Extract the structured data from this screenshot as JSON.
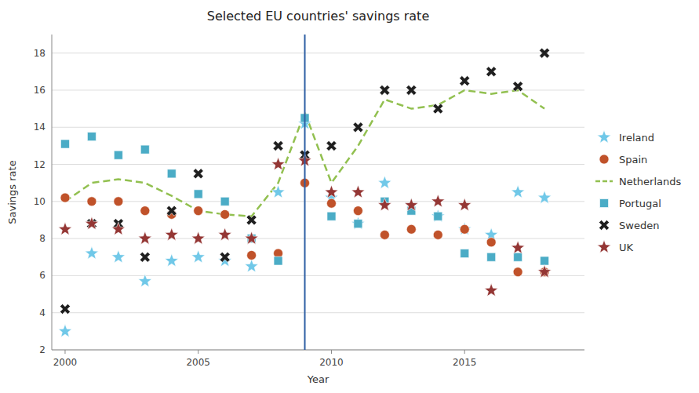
{
  "chart_data": {
    "type": "scatter",
    "title": "Selected EU countries' savings rate",
    "xlabel": "Year",
    "ylabel": "Savings rate",
    "x": [
      2000,
      2001,
      2002,
      2003,
      2004,
      2005,
      2006,
      2007,
      2008,
      2009,
      2010,
      2011,
      2012,
      2013,
      2014,
      2015,
      2016,
      2017,
      2018
    ],
    "xlim": [
      1999.5,
      2019.5
    ],
    "xticks": [
      2000,
      2005,
      2010,
      2015
    ],
    "ylim": [
      2,
      19
    ],
    "yticks": [
      2,
      4,
      6,
      8,
      10,
      12,
      14,
      16,
      18
    ],
    "grid": "y",
    "legend": "right",
    "vline": {
      "x": 2009,
      "color": "#2E5FA3"
    },
    "series": [
      {
        "name": "Ireland",
        "color": "#70C8E8",
        "marker": "star",
        "values": [
          3.0,
          7.2,
          7.0,
          5.7,
          6.8,
          7.0,
          6.8,
          6.5,
          10.5,
          14.2,
          10.2,
          8.8,
          11.0,
          9.8,
          9.2,
          8.5,
          8.2,
          10.5,
          10.2
        ]
      },
      {
        "name": "Spain",
        "color": "#C0522A",
        "marker": "circle",
        "values": [
          10.2,
          10.0,
          10.0,
          9.5,
          9.3,
          9.5,
          9.3,
          7.1,
          7.2,
          11.0,
          9.9,
          9.5,
          8.2,
          8.5,
          8.2,
          8.5,
          7.8,
          6.2,
          6.2
        ]
      },
      {
        "name": "Netherlands",
        "color": "#92C050",
        "type": "line",
        "line_style": "dashed",
        "values": [
          10.0,
          11.0,
          11.2,
          11.0,
          10.3,
          9.5,
          9.3,
          9.2,
          11.0,
          14.8,
          11.0,
          13.0,
          15.5,
          15.0,
          15.2,
          16.0,
          15.8,
          16.0,
          15.0
        ]
      },
      {
        "name": "Portugal",
        "color": "#4BACC6",
        "marker": "square",
        "values": [
          13.1,
          13.5,
          12.5,
          12.8,
          11.5,
          10.4,
          10.0,
          8.0,
          6.8,
          14.5,
          9.2,
          8.8,
          10.0,
          9.5,
          9.2,
          7.2,
          7.0,
          7.0,
          6.8
        ]
      },
      {
        "name": "Sweden",
        "color": "#1F1F1F",
        "marker": "x",
        "values": [
          4.2,
          8.8,
          8.8,
          7.0,
          9.5,
          11.5,
          7.0,
          9.0,
          13.0,
          12.5,
          13.0,
          14.0,
          16.0,
          16.0,
          15.0,
          16.5,
          17.0,
          16.2,
          18.0
        ]
      },
      {
        "name": "UK",
        "color": "#943634",
        "marker": "star",
        "values": [
          8.5,
          8.8,
          8.5,
          8.0,
          8.2,
          8.0,
          8.2,
          8.0,
          12.0,
          12.2,
          10.5,
          10.5,
          9.8,
          9.8,
          10.0,
          9.8,
          5.2,
          7.5,
          6.2
        ]
      }
    ]
  }
}
